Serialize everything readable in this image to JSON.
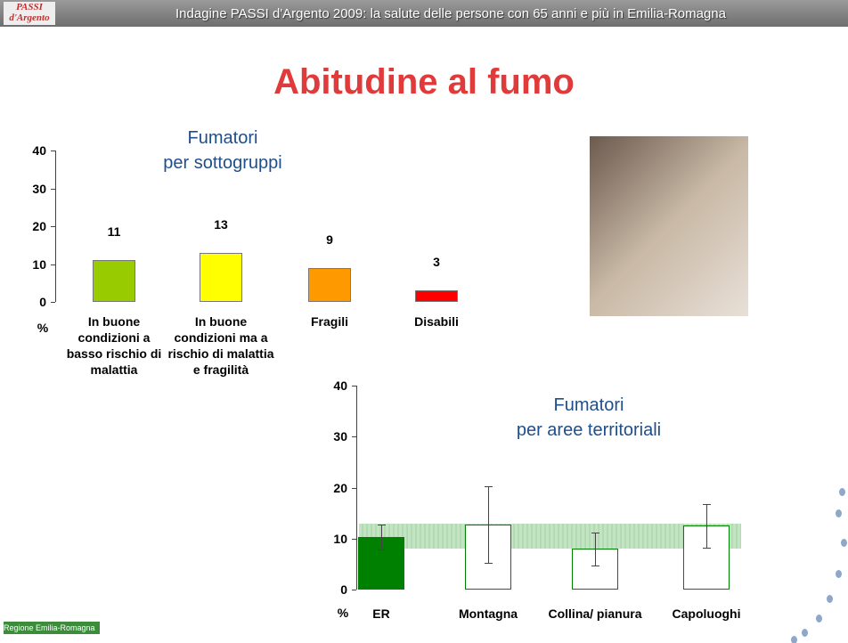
{
  "header": "Indagine PASSI d'Argento 2009: la salute delle persone con 65 anni e più in Emilia-Romagna",
  "logo": "PASSI d'Argento",
  "region": "Regione Emilia-Romagna",
  "title": "Abitudine al fumo",
  "chart_data": [
    {
      "type": "bar",
      "title": [
        "Fumatori",
        "per sottogruppi"
      ],
      "ylabel": "%",
      "categories": [
        "In buone condizioni a basso rischio di malattia",
        "In buone condizioni ma a rischio di malattia e fragilità",
        "Fragili",
        "Disabili"
      ],
      "values": [
        11,
        13,
        9,
        3
      ],
      "colors": [
        "#99cc00",
        "#ffff00",
        "#ff9900",
        "#ff0000"
      ],
      "ylim": [
        0,
        40
      ],
      "yticks": [
        0,
        10,
        20,
        30,
        40
      ]
    },
    {
      "type": "errorbar",
      "title": [
        "Fumatori",
        "per aree territoriali"
      ],
      "ylabel": "%",
      "categories": [
        "ER",
        "Montagna",
        "Collina/ pianura",
        "Capoluoghi"
      ],
      "values": [
        10.3,
        12.8,
        8,
        12.5
      ],
      "lower": [
        7.8,
        5.2,
        4.8,
        8.2
      ],
      "upper": [
        12.7,
        20.3,
        11.2,
        16.8
      ],
      "colors": [
        "#008000",
        "#008000",
        "#008000",
        "#008000"
      ],
      "fill_colors": [
        "#008000",
        "#ffffff",
        "#ffffff",
        "#ffffff"
      ],
      "reference_band": [
        8,
        13
      ],
      "ylim": [
        0,
        40
      ],
      "yticks": [
        0,
        10,
        20,
        30,
        40
      ]
    }
  ]
}
